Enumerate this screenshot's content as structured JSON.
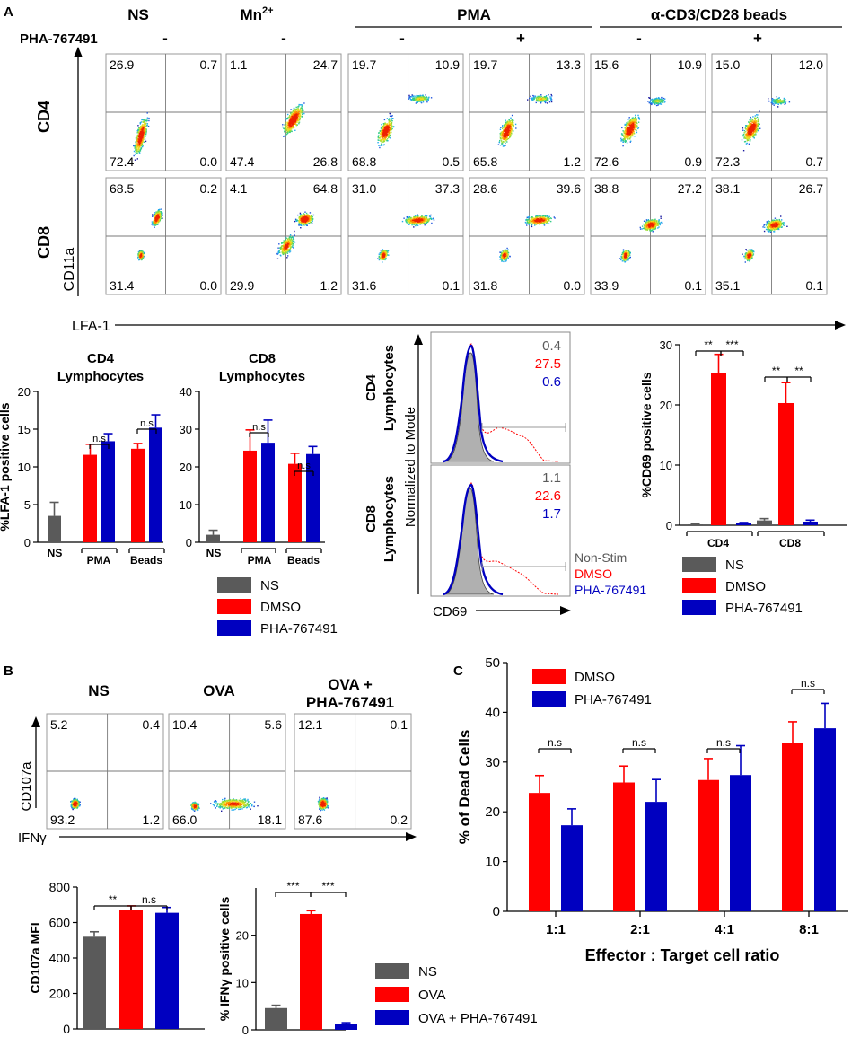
{
  "colors": {
    "ns": "#5a5a5a",
    "dmso": "#ff0000",
    "pha": "#0000c0",
    "grid": "#7a7a7a"
  },
  "panel_a": {
    "letter": "A",
    "headers": {
      "ns": "NS",
      "mn_base": "Mn",
      "mn_sup": "2+",
      "pma": "PMA",
      "beads": "α-CD3/CD28 beads"
    },
    "pha_label": "PHA-767491",
    "pha_signs": [
      "-",
      "-",
      "-",
      "+",
      "-",
      "+"
    ],
    "row_labels": {
      "cd4": "CD4",
      "cd8": "CD8"
    },
    "y_axis": "CD11a",
    "x_axis": "LFA-1",
    "quadrants": {
      "cd4": [
        {
          "ul": "26.9",
          "ur": "0.7",
          "ll": "72.4",
          "lr": "0.0"
        },
        {
          "ul": "1.1",
          "ur": "24.7",
          "ll": "47.4",
          "lr": "26.8"
        },
        {
          "ul": "19.7",
          "ur": "10.9",
          "ll": "68.8",
          "lr": "0.5"
        },
        {
          "ul": "19.7",
          "ur": "13.3",
          "ll": "65.8",
          "lr": "1.2"
        },
        {
          "ul": "15.6",
          "ur": "10.9",
          "ll": "72.6",
          "lr": "0.9"
        },
        {
          "ul": "15.0",
          "ur": "12.0",
          "ll": "72.3",
          "lr": "0.7"
        }
      ],
      "cd8": [
        {
          "ul": "68.5",
          "ur": "0.2",
          "ll": "31.4",
          "lr": "0.0"
        },
        {
          "ul": "4.1",
          "ur": "64.8",
          "ll": "29.9",
          "lr": "1.2"
        },
        {
          "ul": "31.0",
          "ur": "37.3",
          "ll": "31.6",
          "lr": "0.1"
        },
        {
          "ul": "28.6",
          "ur": "39.6",
          "ll": "31.8",
          "lr": "0.0"
        },
        {
          "ul": "38.8",
          "ur": "27.2",
          "ll": "33.9",
          "lr": "0.1"
        },
        {
          "ul": "38.1",
          "ur": "26.7",
          "ll": "35.1",
          "lr": "0.1"
        }
      ]
    },
    "histogram": {
      "y_axis": "Normalized to Mode",
      "x_axis": "CD69",
      "cd4_label_1": "CD4",
      "cd4_label_2": "Lymphocytes",
      "cd8_label_1": "CD8",
      "cd8_label_2": "Lymphocytes",
      "cd4_values": [
        "0.4",
        "27.5",
        "0.6"
      ],
      "cd8_values": [
        "1.1",
        "22.6",
        "1.7"
      ],
      "legend": [
        "Non-Stim",
        "DMSO",
        "PHA-767491"
      ]
    },
    "legend_lfa": [
      "NS",
      "DMSO",
      "PHA-767491"
    ],
    "legend_cd69": [
      "NS",
      "DMSO",
      "PHA-767491"
    ]
  },
  "panel_b": {
    "letter": "B",
    "headers": [
      "NS",
      "OVA",
      "OVA +",
      "PHA-767491"
    ],
    "y_axis": "CD107a",
    "x_axis": "IFNγ",
    "quadrants": [
      {
        "ul": "5.2",
        "ur": "0.4",
        "ll": "93.2",
        "lr": "1.2"
      },
      {
        "ul": "10.4",
        "ur": "5.6",
        "ll": "66.0",
        "lr": "18.1"
      },
      {
        "ul": "12.1",
        "ur": "0.1",
        "ll": "87.6",
        "lr": "0.2"
      }
    ],
    "legend": [
      "NS",
      "OVA",
      "OVA + PHA-767491"
    ]
  },
  "panel_c": {
    "letter": "C"
  },
  "chart_data": [
    {
      "type": "bar",
      "title": "CD4 Lymphocytes",
      "ylabel": "%LFA-1 positive cells",
      "ylim": [
        0,
        20
      ],
      "yticks": [
        "0",
        "5",
        "10",
        "15",
        "20"
      ],
      "group_labels": [
        "NS",
        "PMA",
        "Beads"
      ],
      "bars": [
        {
          "series": "NS",
          "value": 3.5,
          "err": 1.8
        },
        {
          "series": "DMSO",
          "value": 11.6,
          "err": 1.4
        },
        {
          "series": "PHA-767491",
          "value": 13.4,
          "err": 1.0
        },
        {
          "series": "DMSO",
          "value": 12.4,
          "err": 0.7
        },
        {
          "series": "PHA-767491",
          "value": 15.2,
          "err": 1.7
        }
      ],
      "sig": [
        "n.s",
        "n.s"
      ]
    },
    {
      "type": "bar",
      "title": "CD8 Lymphocytes",
      "ylabel": "",
      "ylim": [
        0,
        40
      ],
      "yticks": [
        "0",
        "10",
        "20",
        "30",
        "40"
      ],
      "group_labels": [
        "NS",
        "PMA",
        "Beads"
      ],
      "bars": [
        {
          "series": "NS",
          "value": 2.0,
          "err": 1.2
        },
        {
          "series": "DMSO",
          "value": 24.3,
          "err": 5.5
        },
        {
          "series": "PHA-767491",
          "value": 26.4,
          "err": 6.0
        },
        {
          "series": "DMSO",
          "value": 20.8,
          "err": 2.8
        },
        {
          "series": "PHA-767491",
          "value": 23.4,
          "err": 2.0
        }
      ],
      "sig": [
        "n.s",
        "n.s"
      ]
    },
    {
      "type": "bar",
      "title": "",
      "ylabel": "%CD69 positive cells",
      "ylim": [
        0,
        30
      ],
      "yticks": [
        "0",
        "10",
        "20",
        "30"
      ],
      "group_labels": [
        "CD4",
        "CD8"
      ],
      "bars": [
        {
          "series": "NS",
          "value": 0.15,
          "err": 0.1
        },
        {
          "series": "DMSO",
          "value": 25.3,
          "err": 3.1
        },
        {
          "series": "PHA-767491",
          "value": 0.3,
          "err": 0.15
        },
        {
          "series": "NS",
          "value": 0.8,
          "err": 0.3
        },
        {
          "series": "DMSO",
          "value": 20.3,
          "err": 3.4
        },
        {
          "series": "PHA-767491",
          "value": 0.6,
          "err": 0.25
        }
      ],
      "sig": [
        "**",
        "***",
        "**",
        "**"
      ]
    },
    {
      "type": "bar",
      "title": "",
      "ylabel": "CD107a MFI",
      "ylim": [
        0,
        800
      ],
      "yticks": [
        "0",
        "200",
        "400",
        "600",
        "800"
      ],
      "bars": [
        {
          "series": "NS",
          "value": 520,
          "err": 28
        },
        {
          "series": "OVA",
          "value": 670,
          "err": 24
        },
        {
          "series": "OVA + PHA-767491",
          "value": 655,
          "err": 30
        }
      ],
      "sig": [
        "**",
        "n.s"
      ]
    },
    {
      "type": "bar",
      "title": "",
      "ylabel": "% IFNγ positive cells",
      "ylim": [
        0,
        30
      ],
      "yticks": [
        "0",
        "10",
        "20"
      ],
      "bars": [
        {
          "series": "NS",
          "value": 4.6,
          "err": 0.6
        },
        {
          "series": "OVA",
          "value": 24.5,
          "err": 0.7
        },
        {
          "series": "OVA + PHA-767491",
          "value": 1.2,
          "err": 0.3
        }
      ],
      "sig": [
        "***",
        "***"
      ]
    },
    {
      "type": "bar",
      "title": "",
      "ylabel": "% of Dead Cells",
      "xlabel": "Effector : Target cell ratio",
      "ylim": [
        0,
        50
      ],
      "yticks": [
        "0",
        "10",
        "20",
        "30",
        "40",
        "50"
      ],
      "categories": [
        "1:1",
        "2:1",
        "4:1",
        "8:1"
      ],
      "series": [
        {
          "name": "DMSO",
          "values": [
            23.8,
            25.9,
            26.4,
            33.9
          ],
          "errors": [
            3.5,
            3.3,
            4.3,
            4.2
          ]
        },
        {
          "name": "PHA-767491",
          "values": [
            17.3,
            22.0,
            27.4,
            36.8
          ],
          "errors": [
            3.3,
            4.5,
            5.9,
            5.0
          ]
        }
      ],
      "sig": [
        "n.s",
        "n.s",
        "n.s",
        "n.s"
      ]
    }
  ]
}
